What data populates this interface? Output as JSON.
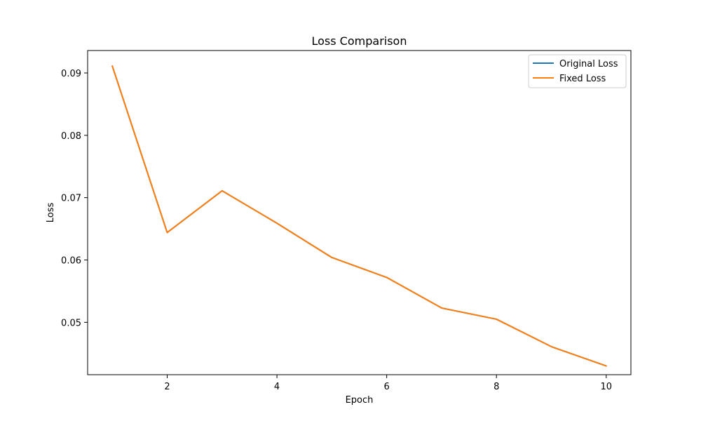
{
  "chart_data": {
    "type": "line",
    "title": "Loss Comparison",
    "xlabel": "Epoch",
    "ylabel": "Loss",
    "xlim": [
      0.55,
      10.45
    ],
    "ylim": [
      0.0416,
      0.0936
    ],
    "xticks": [
      2,
      4,
      6,
      8,
      10
    ],
    "yticks": [
      0.05,
      0.06,
      0.07,
      0.08,
      0.09
    ],
    "xtick_labels": [
      "2",
      "4",
      "6",
      "8",
      "10"
    ],
    "ytick_labels": [
      "0.05",
      "0.06",
      "0.07",
      "0.08",
      "0.09"
    ],
    "grid": false,
    "legend_position": "top-right",
    "x": [
      1,
      2,
      3,
      4,
      5,
      6,
      7,
      8,
      9,
      10
    ],
    "series": [
      {
        "name": "Original Loss",
        "color": "#1f77b4",
        "values": [
          0.0911,
          0.0644,
          0.0711,
          0.0659,
          0.0604,
          0.0572,
          0.0523,
          0.0505,
          0.0461,
          0.043
        ]
      },
      {
        "name": "Fixed Loss",
        "color": "#ff7f0e",
        "values": [
          0.0911,
          0.0644,
          0.0711,
          0.0659,
          0.0604,
          0.0572,
          0.0523,
          0.0505,
          0.0461,
          0.043
        ]
      }
    ]
  }
}
